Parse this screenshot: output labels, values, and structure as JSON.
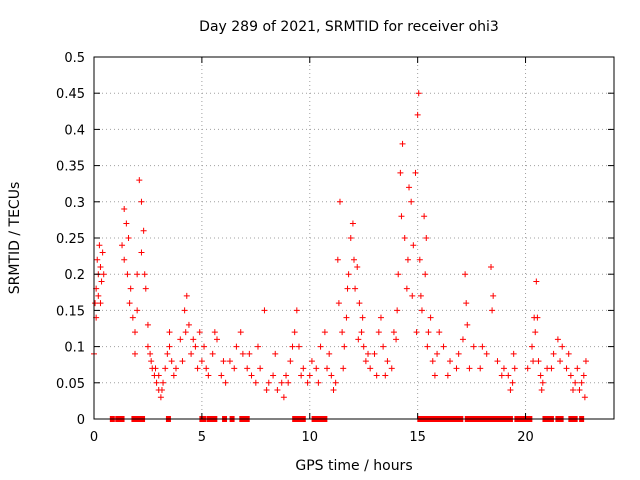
{
  "chart_data": {
    "type": "scatter",
    "title": "Day 289 of 2021, SRMTID for receiver ohi3",
    "xlabel": "GPS time / hours",
    "ylabel": "SRMTID / TECUs",
    "xlim": [
      0,
      24.1
    ],
    "ylim": [
      0,
      0.5
    ],
    "x_ticks": [
      0,
      5,
      10,
      15,
      20
    ],
    "x_tick_labels": [
      "0",
      "5",
      "10",
      "15",
      "20"
    ],
    "y_ticks": [
      0,
      0.05,
      0.1,
      0.15,
      0.2,
      0.25,
      0.3,
      0.35,
      0.4,
      0.45,
      0.5
    ],
    "y_tick_labels": [
      "0",
      "0.05",
      "0.1",
      "0.15",
      "0.2",
      "0.25",
      "0.3",
      "0.35",
      "0.4",
      "0.45",
      "0.5"
    ],
    "grid": true,
    "legend": "none",
    "series": [
      {
        "name": "SRMTID",
        "color": "#ff0000",
        "marker": "plus",
        "points": [
          [
            0.0,
            0.09
          ],
          [
            0.05,
            0.16
          ],
          [
            0.1,
            0.18
          ],
          [
            0.15,
            0.22
          ],
          [
            0.2,
            0.2
          ],
          [
            0.25,
            0.24
          ],
          [
            0.3,
            0.21
          ],
          [
            0.35,
            0.19
          ],
          [
            0.4,
            0.23
          ],
          [
            0.45,
            0.2
          ],
          [
            1.3,
            0.24
          ],
          [
            1.4,
            0.29
          ],
          [
            1.5,
            0.27
          ],
          [
            1.6,
            0.25
          ],
          [
            1.7,
            0.18
          ],
          [
            1.8,
            0.14
          ],
          [
            1.9,
            0.12
          ],
          [
            2.0,
            0.2
          ],
          [
            2.1,
            0.33
          ],
          [
            2.2,
            0.3
          ],
          [
            2.3,
            0.26
          ],
          [
            2.4,
            0.18
          ],
          [
            2.5,
            0.13
          ],
          [
            2.6,
            0.09
          ],
          [
            2.7,
            0.07
          ],
          [
            2.8,
            0.06
          ],
          [
            2.9,
            0.05
          ],
          [
            3.0,
            0.04
          ],
          [
            3.1,
            0.03
          ],
          [
            3.2,
            0.05
          ],
          [
            3.3,
            0.07
          ],
          [
            3.4,
            0.09
          ],
          [
            3.5,
            0.1
          ],
          [
            3.6,
            0.08
          ],
          [
            3.8,
            0.07
          ],
          [
            4.0,
            0.11
          ],
          [
            4.2,
            0.15
          ],
          [
            4.3,
            0.17
          ],
          [
            4.4,
            0.13
          ],
          [
            4.5,
            0.09
          ],
          [
            4.7,
            0.1
          ],
          [
            4.9,
            0.12
          ],
          [
            5.0,
            0.08
          ],
          [
            5.2,
            0.07
          ],
          [
            5.5,
            0.09
          ],
          [
            5.7,
            0.11
          ],
          [
            5.9,
            0.06
          ],
          [
            6.1,
            0.05
          ],
          [
            6.3,
            0.08
          ],
          [
            6.6,
            0.1
          ],
          [
            6.9,
            0.09
          ],
          [
            7.1,
            0.07
          ],
          [
            7.3,
            0.06
          ],
          [
            7.5,
            0.05
          ],
          [
            7.7,
            0.07
          ],
          [
            7.9,
            0.15
          ],
          [
            8.1,
            0.05
          ],
          [
            8.3,
            0.06
          ],
          [
            8.5,
            0.04
          ],
          [
            8.7,
            0.05
          ],
          [
            8.9,
            0.06
          ],
          [
            9.1,
            0.08
          ],
          [
            9.3,
            0.12
          ],
          [
            9.4,
            0.15
          ],
          [
            9.5,
            0.1
          ],
          [
            9.7,
            0.07
          ],
          [
            9.9,
            0.05
          ],
          [
            10.1,
            0.08
          ],
          [
            10.3,
            0.07
          ],
          [
            10.5,
            0.1
          ],
          [
            10.7,
            0.12
          ],
          [
            10.9,
            0.09
          ],
          [
            11.0,
            0.06
          ],
          [
            11.2,
            0.05
          ],
          [
            11.3,
            0.22
          ],
          [
            11.4,
            0.3
          ],
          [
            11.5,
            0.12
          ],
          [
            11.6,
            0.1
          ],
          [
            11.7,
            0.14
          ],
          [
            11.8,
            0.2
          ],
          [
            11.9,
            0.25
          ],
          [
            12.0,
            0.27
          ],
          [
            12.1,
            0.18
          ],
          [
            12.2,
            0.21
          ],
          [
            12.3,
            0.16
          ],
          [
            12.4,
            0.12
          ],
          [
            12.5,
            0.1
          ],
          [
            12.6,
            0.08
          ],
          [
            12.8,
            0.07
          ],
          [
            13.0,
            0.09
          ],
          [
            13.2,
            0.12
          ],
          [
            13.4,
            0.1
          ],
          [
            13.6,
            0.08
          ],
          [
            13.8,
            0.07
          ],
          [
            14.0,
            0.11
          ],
          [
            14.1,
            0.2
          ],
          [
            14.2,
            0.34
          ],
          [
            14.3,
            0.38
          ],
          [
            14.4,
            0.25
          ],
          [
            14.5,
            0.18
          ],
          [
            14.6,
            0.32
          ],
          [
            14.7,
            0.3
          ],
          [
            14.8,
            0.24
          ],
          [
            14.9,
            0.34
          ],
          [
            15.0,
            0.42
          ],
          [
            15.05,
            0.45
          ],
          [
            15.1,
            0.22
          ],
          [
            15.2,
            0.15
          ],
          [
            15.3,
            0.28
          ],
          [
            15.4,
            0.25
          ],
          [
            15.5,
            0.12
          ],
          [
            15.6,
            0.14
          ],
          [
            15.7,
            0.08
          ],
          [
            15.9,
            0.09
          ],
          [
            16.2,
            0.1
          ],
          [
            16.5,
            0.08
          ],
          [
            16.8,
            0.07
          ],
          [
            17.1,
            0.11
          ],
          [
            17.2,
            0.2
          ],
          [
            17.3,
            0.13
          ],
          [
            17.6,
            0.1
          ],
          [
            17.9,
            0.07
          ],
          [
            18.2,
            0.09
          ],
          [
            18.4,
            0.21
          ],
          [
            18.5,
            0.17
          ],
          [
            18.7,
            0.08
          ],
          [
            19.0,
            0.07
          ],
          [
            19.2,
            0.06
          ],
          [
            19.4,
            0.05
          ],
          [
            19.5,
            0.07
          ],
          [
            20.1,
            0.07
          ],
          [
            20.3,
            0.1
          ],
          [
            20.4,
            0.14
          ],
          [
            20.5,
            0.19
          ],
          [
            20.6,
            0.08
          ],
          [
            20.7,
            0.06
          ],
          [
            20.8,
            0.05
          ],
          [
            21.0,
            0.07
          ],
          [
            21.3,
            0.09
          ],
          [
            21.5,
            0.11
          ],
          [
            21.7,
            0.1
          ],
          [
            21.9,
            0.07
          ],
          [
            22.1,
            0.06
          ],
          [
            22.3,
            0.05
          ],
          [
            22.5,
            0.04
          ],
          [
            22.7,
            0.06
          ],
          [
            22.8,
            0.08
          ],
          [
            0.1,
            0.14
          ],
          [
            0.2,
            0.17
          ],
          [
            0.3,
            0.16
          ],
          [
            1.4,
            0.22
          ],
          [
            1.55,
            0.2
          ],
          [
            1.65,
            0.16
          ],
          [
            1.9,
            0.09
          ],
          [
            2.0,
            0.15
          ],
          [
            2.2,
            0.23
          ],
          [
            2.35,
            0.2
          ],
          [
            2.5,
            0.1
          ],
          [
            2.65,
            0.08
          ],
          [
            2.85,
            0.07
          ],
          [
            3.0,
            0.06
          ],
          [
            3.15,
            0.04
          ],
          [
            3.5,
            0.12
          ],
          [
            3.7,
            0.06
          ],
          [
            4.1,
            0.08
          ],
          [
            4.25,
            0.12
          ],
          [
            4.6,
            0.11
          ],
          [
            4.8,
            0.07
          ],
          [
            5.1,
            0.1
          ],
          [
            5.3,
            0.06
          ],
          [
            5.6,
            0.12
          ],
          [
            6.0,
            0.08
          ],
          [
            6.5,
            0.07
          ],
          [
            6.8,
            0.12
          ],
          [
            7.2,
            0.09
          ],
          [
            7.6,
            0.1
          ],
          [
            8.0,
            0.04
          ],
          [
            8.4,
            0.09
          ],
          [
            8.8,
            0.03
          ],
          [
            9.0,
            0.05
          ],
          [
            9.2,
            0.1
          ],
          [
            9.6,
            0.06
          ],
          [
            10.0,
            0.06
          ],
          [
            10.4,
            0.05
          ],
          [
            10.8,
            0.07
          ],
          [
            11.1,
            0.04
          ],
          [
            11.35,
            0.16
          ],
          [
            11.55,
            0.07
          ],
          [
            11.75,
            0.18
          ],
          [
            12.05,
            0.22
          ],
          [
            12.25,
            0.11
          ],
          [
            12.45,
            0.14
          ],
          [
            12.7,
            0.09
          ],
          [
            13.1,
            0.06
          ],
          [
            13.3,
            0.14
          ],
          [
            13.5,
            0.06
          ],
          [
            13.9,
            0.12
          ],
          [
            14.05,
            0.15
          ],
          [
            14.25,
            0.28
          ],
          [
            14.55,
            0.22
          ],
          [
            14.75,
            0.17
          ],
          [
            14.95,
            0.12
          ],
          [
            15.15,
            0.17
          ],
          [
            15.35,
            0.2
          ],
          [
            15.45,
            0.1
          ],
          [
            15.8,
            0.06
          ],
          [
            16.0,
            0.12
          ],
          [
            16.4,
            0.06
          ],
          [
            16.9,
            0.09
          ],
          [
            17.25,
            0.16
          ],
          [
            17.4,
            0.07
          ],
          [
            18.0,
            0.1
          ],
          [
            18.45,
            0.15
          ],
          [
            18.9,
            0.06
          ],
          [
            19.3,
            0.04
          ],
          [
            19.45,
            0.09
          ],
          [
            20.35,
            0.08
          ],
          [
            20.45,
            0.12
          ],
          [
            20.55,
            0.14
          ],
          [
            20.75,
            0.04
          ],
          [
            21.2,
            0.07
          ],
          [
            21.6,
            0.08
          ],
          [
            22.0,
            0.09
          ],
          [
            22.2,
            0.04
          ],
          [
            22.4,
            0.07
          ],
          [
            22.6,
            0.05
          ],
          [
            22.75,
            0.03
          ]
        ]
      },
      {
        "name": "zero-values",
        "color": "#ff0000",
        "marker": "square",
        "points": [
          [
            0.85,
            0
          ],
          [
            1.1,
            0
          ],
          [
            1.2,
            0
          ],
          [
            1.3,
            0
          ],
          [
            1.85,
            0
          ],
          [
            2.0,
            0
          ],
          [
            2.1,
            0
          ],
          [
            2.25,
            0
          ],
          [
            3.45,
            0
          ],
          [
            5.0,
            0
          ],
          [
            5.1,
            0
          ],
          [
            5.35,
            0
          ],
          [
            5.45,
            0
          ],
          [
            5.6,
            0
          ],
          [
            6.05,
            0
          ],
          [
            6.4,
            0
          ],
          [
            6.85,
            0
          ],
          [
            7.0,
            0
          ],
          [
            7.1,
            0
          ],
          [
            9.3,
            0
          ],
          [
            9.4,
            0
          ],
          [
            9.5,
            0
          ],
          [
            9.6,
            0
          ],
          [
            9.7,
            0
          ],
          [
            10.2,
            0
          ],
          [
            10.3,
            0
          ],
          [
            10.4,
            0
          ],
          [
            10.5,
            0
          ],
          [
            10.6,
            0
          ],
          [
            10.7,
            0
          ],
          [
            15.1,
            0
          ],
          [
            15.2,
            0
          ],
          [
            15.4,
            0
          ],
          [
            15.6,
            0
          ],
          [
            15.8,
            0
          ],
          [
            16.0,
            0
          ],
          [
            16.2,
            0
          ],
          [
            16.35,
            0
          ],
          [
            16.5,
            0
          ],
          [
            16.6,
            0
          ],
          [
            16.75,
            0
          ],
          [
            16.9,
            0
          ],
          [
            17.0,
            0
          ],
          [
            17.3,
            0
          ],
          [
            17.45,
            0
          ],
          [
            17.6,
            0
          ],
          [
            17.75,
            0
          ],
          [
            17.9,
            0
          ],
          [
            18.05,
            0
          ],
          [
            18.2,
            0
          ],
          [
            18.35,
            0
          ],
          [
            18.5,
            0
          ],
          [
            18.65,
            0
          ],
          [
            18.8,
            0
          ],
          [
            19.0,
            0
          ],
          [
            19.15,
            0
          ],
          [
            19.3,
            0
          ],
          [
            19.6,
            0
          ],
          [
            19.75,
            0
          ],
          [
            19.9,
            0
          ],
          [
            20.05,
            0
          ],
          [
            20.2,
            0
          ],
          [
            20.9,
            0
          ],
          [
            21.05,
            0
          ],
          [
            21.2,
            0
          ],
          [
            21.5,
            0
          ],
          [
            21.65,
            0
          ],
          [
            22.1,
            0
          ],
          [
            22.3,
            0
          ],
          [
            22.6,
            0
          ]
        ]
      }
    ]
  }
}
